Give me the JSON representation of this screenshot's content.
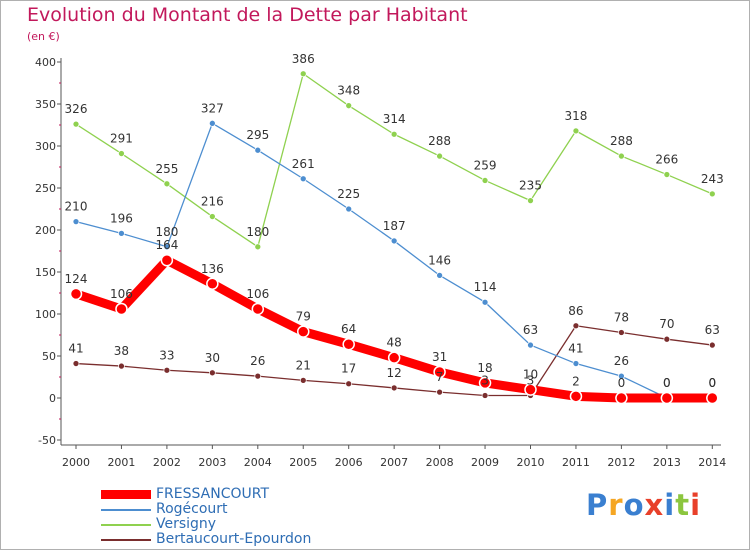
{
  "title": "Evolution du Montant de la Dette par Habitant",
  "unit": "(en €)",
  "brand": {
    "text": "Proxiti",
    "letter_colors": [
      "#3a7fd0",
      "#f5a623",
      "#3a7fd0",
      "#e8402a",
      "#3a7fd0",
      "#8cc63f",
      "#e8402a"
    ]
  },
  "chart_data": {
    "type": "line",
    "x": [
      "2000",
      "2001",
      "2002",
      "2003",
      "2004",
      "2005",
      "2006",
      "2007",
      "2008",
      "2009",
      "2010",
      "2011",
      "2012",
      "2013",
      "2014"
    ],
    "y_ticks": [
      "400",
      "350",
      "300",
      "250",
      "200",
      "150",
      "100",
      "50",
      "0",
      "-50"
    ],
    "ylim": [
      -50,
      400
    ],
    "grid": false,
    "legend_position": "bottom-left",
    "series": [
      {
        "name": "Bertaucourt-Epourdon",
        "color": "#7a2e2e",
        "values": [
          41,
          38,
          33,
          30,
          26,
          21,
          17,
          12,
          7,
          3,
          3,
          86,
          78,
          70,
          63
        ],
        "labels": [
          "41",
          "38",
          "33",
          "30",
          "26",
          "21",
          "17",
          "12",
          "7",
          "3",
          "3",
          "86",
          "78",
          "70",
          "63"
        ]
      },
      {
        "name": "Versigny",
        "color": "#8fd14f",
        "values": [
          326,
          291,
          255,
          216,
          180,
          386,
          348,
          314,
          288,
          259,
          235,
          318,
          288,
          266,
          243
        ],
        "labels": [
          "326",
          "291",
          "255",
          "216",
          "180",
          "386",
          "348",
          "314",
          "288",
          "259",
          "235",
          "318",
          "288",
          "266",
          "243"
        ]
      },
      {
        "name": "Rogécourt",
        "color": "#4d8ed0",
        "values": [
          210,
          196,
          180,
          327,
          295,
          261,
          225,
          187,
          146,
          114,
          63,
          41,
          26,
          0,
          0
        ],
        "labels": [
          "210",
          "196",
          "180",
          "327",
          "295",
          "261",
          "225",
          "187",
          "146",
          "114",
          "63",
          "41",
          "26",
          "0",
          "0"
        ]
      },
      {
        "name": "FRESSANCOURT",
        "color": "#ff0000",
        "values": [
          124,
          106,
          164,
          136,
          106,
          79,
          64,
          48,
          31,
          18,
          10,
          2,
          0,
          0,
          0
        ],
        "labels": [
          "124",
          "106",
          "164",
          "136",
          "106",
          "79",
          "64",
          "48",
          "31",
          "18",
          "10",
          "2",
          "0",
          "0",
          "0"
        ]
      }
    ],
    "legend_order": [
      "FRESSANCOURT",
      "Rogécourt",
      "Versigny",
      "Bertaucourt-Epourdon"
    ]
  }
}
